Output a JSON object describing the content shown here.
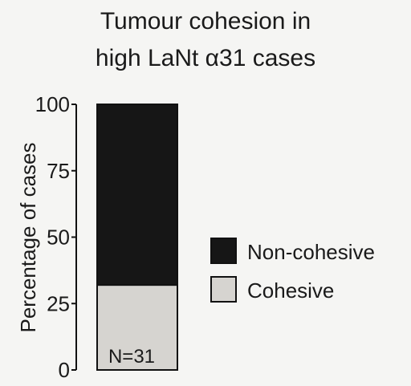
{
  "chart_data": {
    "type": "bar",
    "stacked": true,
    "title_lines": [
      "Tumour cohesion in",
      "high LaNt α31 cases"
    ],
    "xlabel": "",
    "ylabel": "Percentage of cases",
    "ylim": [
      0,
      100
    ],
    "yticks": [
      0,
      25,
      50,
      75,
      100
    ],
    "categories": [
      ""
    ],
    "series": [
      {
        "name": "Cohesive",
        "values": [
          32
        ],
        "color": "#d6d4d0"
      },
      {
        "name": "Non-cohesive",
        "values": [
          68
        ],
        "color": "#161616"
      }
    ],
    "legend": {
      "placement": "right",
      "order": [
        "Non-cohesive",
        "Cohesive"
      ]
    },
    "annotation": "N=31",
    "grid": false
  }
}
